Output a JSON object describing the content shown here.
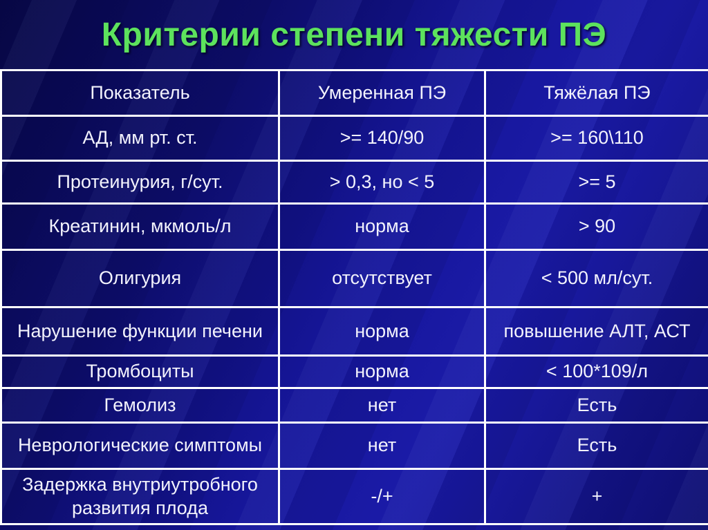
{
  "slide": {
    "title": "Критерии степени тяжести ПЭ"
  },
  "table": {
    "headers": [
      "Показатель",
      "Умеренная ПЭ",
      "Тяжёлая ПЭ"
    ],
    "rows": [
      [
        "АД, мм рт. ст.",
        ">= 140/90",
        ">= 160\\110"
      ],
      [
        "Протеинурия, г/сут.",
        "> 0,3, но < 5",
        ">= 5"
      ],
      [
        "Креатинин, мкмоль/л",
        "норма",
        "> 90"
      ],
      [
        "Олигурия",
        "отсутствует",
        "< 500 мл/сут."
      ],
      [
        "Нарушение функции печени",
        "норма",
        "повышение АЛТ, АСТ"
      ],
      [
        "Тромбоциты",
        "норма",
        "< 100*109/л"
      ],
      [
        "Гемолиз",
        "нет",
        "Есть"
      ],
      [
        "Неврологические симптомы",
        "нет",
        "Есть"
      ],
      [
        "Задержка внутриутробного развития плода",
        "-/+",
        "+"
      ]
    ]
  },
  "colors": {
    "title_green": "#5de25d",
    "background_blue": "#14148c",
    "border_white": "#ffffff",
    "text_white": "#f2f2fc"
  }
}
